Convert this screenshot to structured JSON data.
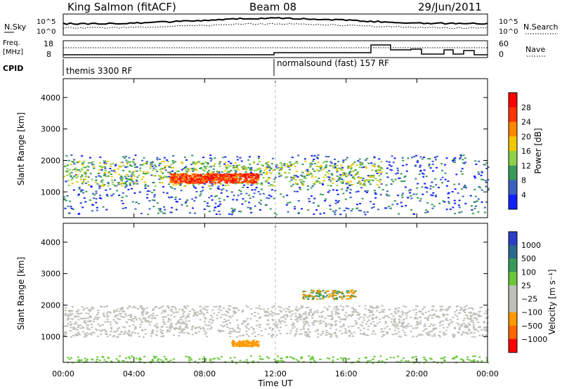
{
  "header": {
    "title_left": "King Salmon (fitACF)",
    "title_center": "Beam 08",
    "title_right": "29/Jun/2011"
  },
  "top_panel": {
    "left_label_sky": "N.Sky",
    "left_ticks": [
      "10^5",
      "10^0"
    ],
    "right_ticks": [
      "10^5",
      "10^0"
    ],
    "right_label": "N.Search"
  },
  "freq_panel": {
    "left_label_line1": "Freq.",
    "left_label_line2": "[MHz]",
    "left_ticks": [
      "18",
      "8"
    ],
    "right_ticks": [
      "60",
      "0"
    ],
    "right_label": "Nave"
  },
  "cpid": {
    "label": "CPID",
    "segments": [
      {
        "label": "themis 3300 RF",
        "start_hour": 0
      },
      {
        "label": "normalsound (fast) 157 RF",
        "start_hour": 12
      }
    ]
  },
  "x_axis": {
    "label": "Time UT",
    "ticks": [
      "00:00",
      "04:00",
      "08:00",
      "12:00",
      "16:00",
      "20:00",
      "00:00"
    ]
  },
  "power_panel": {
    "ylabel": "Slant Range [km]",
    "yticks": [
      "4000",
      "3000",
      "2000",
      "1000"
    ],
    "colorbar_label": "Power [dB]",
    "colorbar_ticks": [
      "28",
      "24",
      "20",
      "16",
      "12",
      "8",
      "4"
    ],
    "colors": [
      "#ff0000",
      "#ff3300",
      "#ff8800",
      "#f0c800",
      "#8fd04a",
      "#3a9a5a",
      "#3a60c0",
      "#1020ff"
    ]
  },
  "velocity_panel": {
    "ylabel": "Slant Range [km]",
    "yticks": [
      "4000",
      "3000",
      "2000",
      "1000"
    ],
    "colorbar_label": "Velocity [m s⁻¹]",
    "colorbar_ticks": [
      "1000",
      "500",
      "100",
      "25",
      "−25",
      "−100",
      "−500",
      "−1000"
    ],
    "colors": [
      "#2a3ec8",
      "#2a6a8c",
      "#3a9a5a",
      "#6ac83a",
      "#c0c0b8",
      "#c0c0b8",
      "#ff9900",
      "#ff6600",
      "#ff0000"
    ]
  },
  "chart_data": {
    "type": "heatmap",
    "x_range_hours": [
      0,
      24
    ],
    "y_range_km": [
      180,
      4600
    ],
    "power_bands": [
      {
        "level": "high",
        "hours": [
          6,
          11
        ],
        "range_km": [
          1300,
          1600
        ]
      },
      {
        "level": "mid",
        "hours": [
          0,
          18
        ],
        "range_km": [
          1200,
          2000
        ]
      },
      {
        "level": "low",
        "hours": [
          0,
          24
        ],
        "range_km": [
          300,
          2200
        ]
      }
    ],
    "velocity_bands": [
      {
        "level": "near-zero",
        "hours": [
          0,
          24
        ],
        "range_km": [
          1000,
          2000
        ]
      },
      {
        "level": "negative",
        "hours": [
          9.5,
          11
        ],
        "range_km": [
          700,
          900
        ]
      },
      {
        "level": "positive",
        "hours": [
          13.5,
          16.5
        ],
        "range_km": [
          2200,
          2500
        ]
      }
    ]
  }
}
